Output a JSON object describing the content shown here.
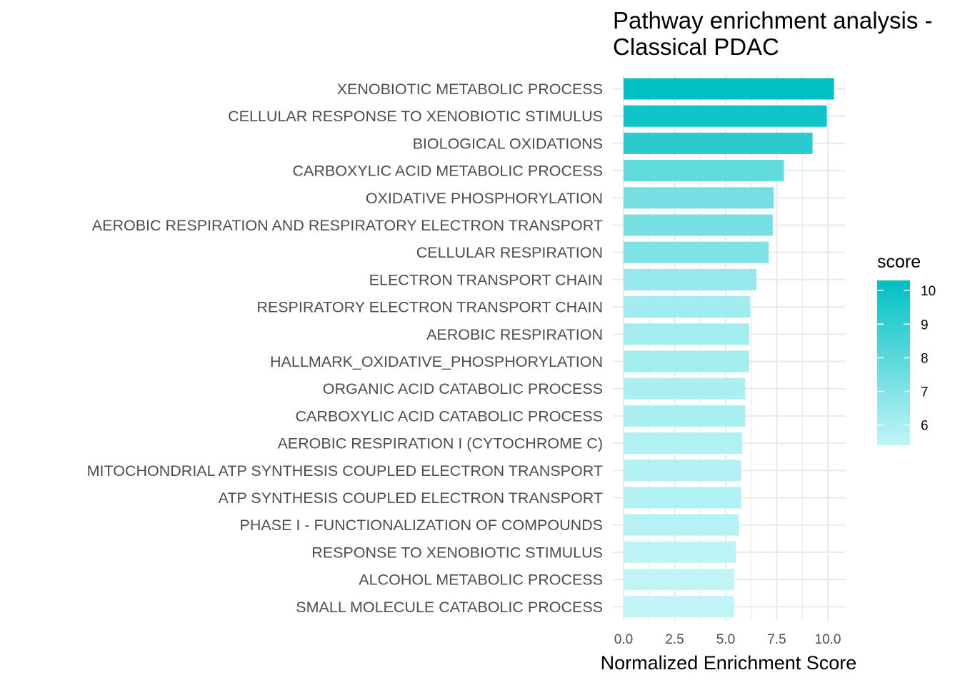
{
  "chart_data": {
    "type": "bar",
    "orientation": "horizontal",
    "title": "Pathway enrichment analysis -\nClassical PDAC",
    "xlabel": "Normalized Enrichment Score",
    "ylabel": "",
    "xlim": [
      0,
      10.6
    ],
    "xticks": [
      "0.0",
      "2.5",
      "5.0",
      "7.5",
      "10.0"
    ],
    "xtick_values": [
      0,
      2.5,
      5,
      7.5,
      10
    ],
    "grid": true,
    "categories": [
      "XENOBIOTIC METABOLIC PROCESS",
      "CELLULAR RESPONSE TO XENOBIOTIC STIMULUS",
      "BIOLOGICAL OXIDATIONS",
      "CARBOXYLIC ACID METABOLIC PROCESS",
      "OXIDATIVE PHOSPHORYLATION",
      "AEROBIC RESPIRATION AND RESPIRATORY ELECTRON TRANSPORT",
      "CELLULAR RESPIRATION",
      "ELECTRON TRANSPORT CHAIN",
      "RESPIRATORY ELECTRON TRANSPORT CHAIN",
      "AEROBIC RESPIRATION",
      "HALLMARK_OXIDATIVE_PHOSPHORYLATION",
      "ORGANIC ACID CATABOLIC PROCESS",
      "CARBOXYLIC ACID CATABOLIC PROCESS",
      "AEROBIC RESPIRATION I (CYTOCHROME C)",
      "MITOCHONDRIAL ATP SYNTHESIS COUPLED ELECTRON TRANSPORT",
      "ATP SYNTHESIS COUPLED ELECTRON TRANSPORT",
      "PHASE I - FUNCTIONALIZATION OF COMPOUNDS",
      "RESPONSE TO XENOBIOTIC STIMULUS",
      "ALCOHOL METABOLIC PROCESS",
      "SMALL MOLECULE CATABOLIC PROCESS"
    ],
    "values": [
      10.3,
      9.95,
      9.25,
      7.85,
      7.35,
      7.3,
      7.1,
      6.5,
      6.2,
      6.15,
      6.15,
      5.95,
      5.95,
      5.8,
      5.75,
      5.75,
      5.65,
      5.5,
      5.4,
      5.4
    ],
    "legend": {
      "title": "score",
      "position": "right",
      "range": [
        5.4,
        10.3
      ],
      "ticks": [
        "10",
        "9",
        "8",
        "7",
        "6"
      ],
      "tick_values": [
        10,
        9,
        8,
        7,
        6
      ],
      "color_low": "#c0f5f7",
      "color_high": "#00c0c4"
    },
    "colors": {
      "grid": "#ebebeb"
    }
  }
}
